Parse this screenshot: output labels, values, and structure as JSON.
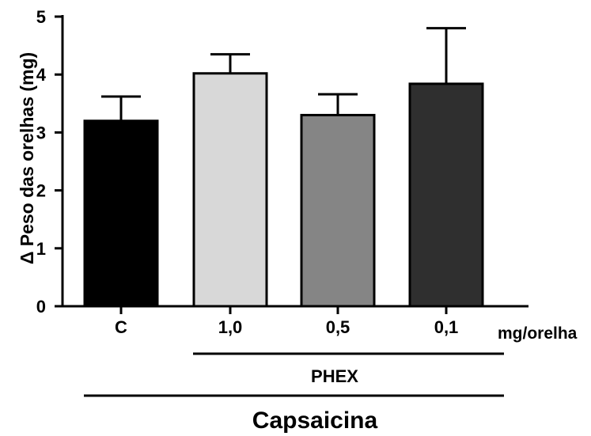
{
  "chart_data": {
    "type": "bar",
    "categories": [
      "C",
      "1,0",
      "0,5",
      "0,1"
    ],
    "values": [
      3.2,
      4.02,
      3.3,
      3.84
    ],
    "errors": [
      0.42,
      0.33,
      0.36,
      0.96
    ],
    "colors": [
      "#000000",
      "#d8d8d8",
      "#858585",
      "#2f2f2f"
    ],
    "ylabel": "Δ Peso das orelhas (mg)",
    "ylim": [
      0,
      5
    ],
    "yticks": [
      0,
      1,
      2,
      3,
      4,
      5
    ],
    "unit_label": "mg/orelha",
    "group_labels": {
      "phex": "PHEX",
      "capsaicina": "Capsaicina"
    },
    "grid": false
  }
}
